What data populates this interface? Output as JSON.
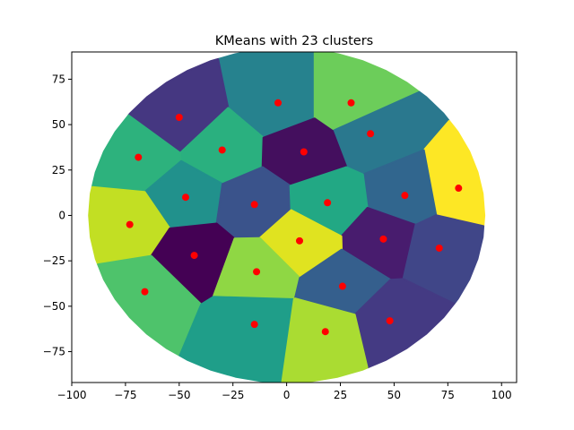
{
  "chart_data": {
    "type": "scatter",
    "title": "KMeans with 23 clusters",
    "xlabel": "",
    "ylabel": "",
    "xlim": [
      -100,
      107
    ],
    "ylim": [
      -92,
      90
    ],
    "xticks": [
      -100,
      -75,
      -50,
      -25,
      0,
      25,
      50,
      75,
      100
    ],
    "yticks": [
      -75,
      -50,
      -25,
      0,
      25,
      50,
      75
    ],
    "grid": false,
    "legend": "none",
    "centroid_color": "#ff0000",
    "clusters": [
      {
        "center": [
          -4,
          62
        ],
        "color": "#26828e"
      },
      {
        "center": [
          30,
          62
        ],
        "color": "#6ccd5a"
      },
      {
        "center": [
          -50,
          54
        ],
        "color": "#453781"
      },
      {
        "center": [
          39,
          45
        ],
        "color": "#2a788e"
      },
      {
        "center": [
          -30,
          36
        ],
        "color": "#2ab07f"
      },
      {
        "center": [
          -69,
          32
        ],
        "color": "#2db27d"
      },
      {
        "center": [
          8,
          35
        ],
        "color": "#440f5e"
      },
      {
        "center": [
          80,
          15
        ],
        "color": "#fde725"
      },
      {
        "center": [
          55,
          11
        ],
        "color": "#31668e"
      },
      {
        "center": [
          -47,
          10
        ],
        "color": "#21918c"
      },
      {
        "center": [
          -15,
          6
        ],
        "color": "#3a538b"
      },
      {
        "center": [
          19,
          7
        ],
        "color": "#22a884"
      },
      {
        "center": [
          -73,
          -5
        ],
        "color": "#c2df23"
      },
      {
        "center": [
          45,
          -13
        ],
        "color": "#481c6e"
      },
      {
        "center": [
          6,
          -14
        ],
        "color": "#e0e320"
      },
      {
        "center": [
          71,
          -18
        ],
        "color": "#404688"
      },
      {
        "center": [
          -43,
          -22
        ],
        "color": "#440154"
      },
      {
        "center": [
          -14,
          -31
        ],
        "color": "#8fd744"
      },
      {
        "center": [
          26,
          -39
        ],
        "color": "#355f8d"
      },
      {
        "center": [
          -66,
          -42
        ],
        "color": "#4ec36b"
      },
      {
        "center": [
          48,
          -58
        ],
        "color": "#443a83"
      },
      {
        "center": [
          -15,
          -60
        ],
        "color": "#1f9e89"
      },
      {
        "center": [
          18,
          -64
        ],
        "color": "#aadc32"
      }
    ]
  }
}
